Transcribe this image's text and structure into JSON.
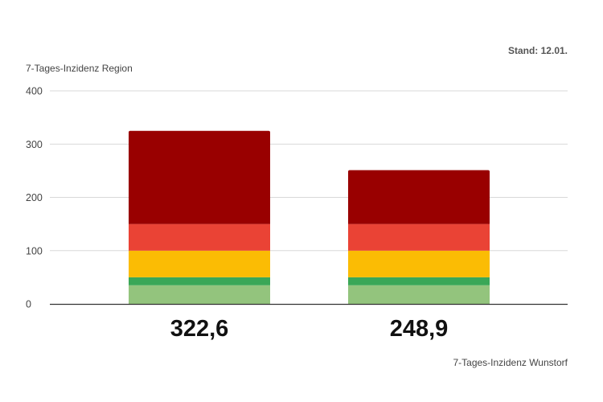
{
  "chart_data": {
    "type": "bar",
    "stacked": true,
    "stand_label": "Stand: 12.01.",
    "ylabel": "7-Tages-Inzidenz Region",
    "xlabel": "7-Tages-Inzidenz Wunstorf",
    "ylim": [
      0,
      400
    ],
    "yticks": [
      "0",
      "100",
      "200",
      "300",
      "400"
    ],
    "grid": true,
    "categories": [
      "",
      ""
    ],
    "value_labels": [
      "322,6",
      "248,9"
    ],
    "totals": [
      322.6,
      248.9
    ],
    "bands": [
      {
        "from": 0,
        "to": 35,
        "color": "#93c47d"
      },
      {
        "from": 35,
        "to": 50,
        "color": "#3aa757"
      },
      {
        "from": 50,
        "to": 100,
        "color": "#fbbc04"
      },
      {
        "from": 100,
        "to": 150,
        "color": "#ea4335"
      },
      {
        "from": 150,
        "to": 400,
        "color": "#990000"
      }
    ],
    "colors": {
      "grid": "#d9d9d9",
      "axis": "#333333"
    }
  }
}
